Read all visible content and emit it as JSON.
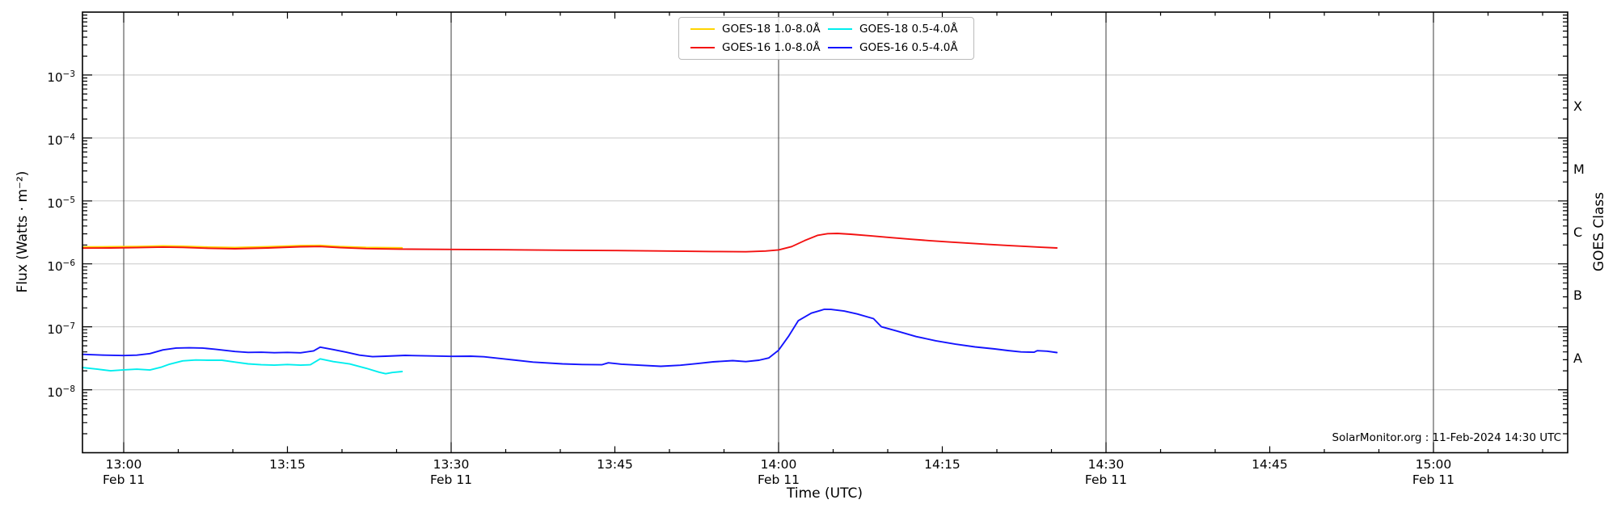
{
  "figure": {
    "background": "#ffffff",
    "annotation": "SolarMonitor.org : 11-Feb-2024 14:30 UTC"
  },
  "axes": {
    "x_label": "Time (UTC)",
    "y_label": "Flux (Watts · m⁻²)",
    "right_label": "GOES Class",
    "x_range_hours": [
      12.937,
      15.205
    ],
    "y_range_exponents": [
      -9,
      -2
    ],
    "x_ticks": [
      {
        "hours": 13.0,
        "label": "13:00",
        "date": "Feb 11",
        "major": true
      },
      {
        "hours": 13.25,
        "label": "13:15",
        "date": "",
        "major": false
      },
      {
        "hours": 13.5,
        "label": "13:30",
        "date": "Feb 11",
        "major": true
      },
      {
        "hours": 13.75,
        "label": "13:45",
        "date": "",
        "major": false
      },
      {
        "hours": 14.0,
        "label": "14:00",
        "date": "Feb 11",
        "major": true
      },
      {
        "hours": 14.25,
        "label": "14:15",
        "date": "",
        "major": false
      },
      {
        "hours": 14.5,
        "label": "14:30",
        "date": "Feb 11",
        "major": true
      },
      {
        "hours": 14.75,
        "label": "14:45",
        "date": "",
        "major": false
      },
      {
        "hours": 15.0,
        "label": "15:00",
        "date": "Feb 11",
        "major": true
      }
    ],
    "y_tick_exponents": [
      -3,
      -4,
      -5,
      -6,
      -7,
      -8
    ],
    "goes_classes": [
      {
        "label": "X",
        "mid_exponent": -3.5
      },
      {
        "label": "M",
        "mid_exponent": -4.5
      },
      {
        "label": "C",
        "mid_exponent": -5.5
      },
      {
        "label": "B",
        "mid_exponent": -6.5
      },
      {
        "label": "A",
        "mid_exponent": -7.5
      }
    ]
  },
  "colors": {
    "grid_horizontal": "#c9c9c9",
    "grid_vertical": "#3d3d3d",
    "axis": "#000000",
    "goes18_long": "#ffd400",
    "goes16_long": "#f31111",
    "goes18_short": "#00eeee",
    "goes16_short": "#1414ff"
  },
  "legend": {
    "items": [
      {
        "label": "GOES-18 1.0-8.0Å",
        "color": "#ffd400"
      },
      {
        "label": "GOES-16 1.0-8.0Å",
        "color": "#f31111"
      },
      {
        "label": "GOES-18 0.5-4.0Å",
        "color": "#00eeee"
      },
      {
        "label": "GOES-16 0.5-4.0Å",
        "color": "#1414ff"
      }
    ]
  },
  "chart_data": {
    "type": "line",
    "title": "",
    "xlabel": "Time (UTC)",
    "ylabel": "Flux (Watts · m⁻²)",
    "ylabel_right": "GOES Class",
    "x_unit": "decimal hours UTC, Feb 11 2024",
    "x_range": [
      12.937,
      15.205
    ],
    "y_scale": "log",
    "y_range": [
      1e-09,
      0.01
    ],
    "grid": {
      "horizontal_decades": true,
      "vertical_half_hours": true
    },
    "legend_position": "top-center",
    "series": [
      {
        "name": "GOES-18 1.0-8.0Å",
        "color": "#ffd400",
        "points": [
          [
            12.937,
            1.86e-06
          ],
          [
            12.98,
            1.87e-06
          ],
          [
            13.02,
            1.89e-06
          ],
          [
            13.06,
            1.93e-06
          ],
          [
            13.09,
            1.91e-06
          ],
          [
            13.13,
            1.85e-06
          ],
          [
            13.17,
            1.82e-06
          ],
          [
            13.22,
            1.87e-06
          ],
          [
            13.27,
            1.95e-06
          ],
          [
            13.3,
            1.97e-06
          ],
          [
            13.33,
            1.89e-06
          ],
          [
            13.37,
            1.83e-06
          ],
          [
            13.425,
            1.8e-06
          ]
        ]
      },
      {
        "name": "GOES-18 0.5-4.0Å",
        "color": "#00eeee",
        "points": [
          [
            12.937,
            2.25e-08
          ],
          [
            12.96,
            2.12e-08
          ],
          [
            12.98,
            2e-08
          ],
          [
            13.0,
            2.07e-08
          ],
          [
            13.02,
            2.12e-08
          ],
          [
            13.04,
            2.06e-08
          ],
          [
            13.058,
            2.3e-08
          ],
          [
            13.07,
            2.55e-08
          ],
          [
            13.09,
            2.88e-08
          ],
          [
            13.11,
            2.97e-08
          ],
          [
            13.13,
            2.95e-08
          ],
          [
            13.15,
            2.95e-08
          ],
          [
            13.17,
            2.75e-08
          ],
          [
            13.19,
            2.58e-08
          ],
          [
            13.21,
            2.5e-08
          ],
          [
            13.23,
            2.46e-08
          ],
          [
            13.25,
            2.52e-08
          ],
          [
            13.27,
            2.46e-08
          ],
          [
            13.285,
            2.5e-08
          ],
          [
            13.3,
            3.1e-08
          ],
          [
            13.32,
            2.8e-08
          ],
          [
            13.345,
            2.57e-08
          ],
          [
            13.37,
            2.2e-08
          ],
          [
            13.39,
            1.9e-08
          ],
          [
            13.4,
            1.8e-08
          ],
          [
            13.41,
            1.88e-08
          ],
          [
            13.425,
            1.95e-08
          ]
        ]
      },
      {
        "name": "GOES-16 1.0-8.0Å",
        "color": "#f31111",
        "points": [
          [
            12.937,
            1.78e-06
          ],
          [
            12.98,
            1.79e-06
          ],
          [
            13.02,
            1.81e-06
          ],
          [
            13.06,
            1.85e-06
          ],
          [
            13.09,
            1.83e-06
          ],
          [
            13.13,
            1.77e-06
          ],
          [
            13.17,
            1.74e-06
          ],
          [
            13.22,
            1.79e-06
          ],
          [
            13.27,
            1.87e-06
          ],
          [
            13.3,
            1.89e-06
          ],
          [
            13.33,
            1.81e-06
          ],
          [
            13.37,
            1.75e-06
          ],
          [
            13.42,
            1.72e-06
          ],
          [
            13.5,
            1.7e-06
          ],
          [
            13.58,
            1.68e-06
          ],
          [
            13.67,
            1.65e-06
          ],
          [
            13.75,
            1.63e-06
          ],
          [
            13.83,
            1.6e-06
          ],
          [
            13.9,
            1.57e-06
          ],
          [
            13.95,
            1.56e-06
          ],
          [
            13.98,
            1.6e-06
          ],
          [
            14.0,
            1.67e-06
          ],
          [
            14.02,
            1.88e-06
          ],
          [
            14.04,
            2.35e-06
          ],
          [
            14.06,
            2.85e-06
          ],
          [
            14.075,
            3.02e-06
          ],
          [
            14.09,
            3.05e-06
          ],
          [
            14.11,
            2.96e-06
          ],
          [
            14.14,
            2.8e-06
          ],
          [
            14.17,
            2.62e-06
          ],
          [
            14.2,
            2.47e-06
          ],
          [
            14.23,
            2.34e-06
          ],
          [
            14.26,
            2.23e-06
          ],
          [
            14.29,
            2.13e-06
          ],
          [
            14.32,
            2.04e-06
          ],
          [
            14.35,
            1.96e-06
          ],
          [
            14.38,
            1.89e-06
          ],
          [
            14.4,
            1.84e-06
          ],
          [
            14.425,
            1.79e-06
          ]
        ]
      },
      {
        "name": "GOES-16 0.5-4.0Å",
        "color": "#1414ff",
        "points": [
          [
            12.937,
            3.66e-08
          ],
          [
            12.97,
            3.55e-08
          ],
          [
            13.0,
            3.5e-08
          ],
          [
            13.02,
            3.55e-08
          ],
          [
            13.04,
            3.75e-08
          ],
          [
            13.06,
            4.3e-08
          ],
          [
            13.08,
            4.6e-08
          ],
          [
            13.1,
            4.65e-08
          ],
          [
            13.12,
            4.6e-08
          ],
          [
            13.14,
            4.4e-08
          ],
          [
            13.17,
            4.05e-08
          ],
          [
            13.19,
            3.92e-08
          ],
          [
            13.21,
            3.95e-08
          ],
          [
            13.23,
            3.88e-08
          ],
          [
            13.25,
            3.92e-08
          ],
          [
            13.27,
            3.87e-08
          ],
          [
            13.29,
            4.15e-08
          ],
          [
            13.3,
            4.75e-08
          ],
          [
            13.32,
            4.35e-08
          ],
          [
            13.34,
            3.95e-08
          ],
          [
            13.36,
            3.55e-08
          ],
          [
            13.38,
            3.36e-08
          ],
          [
            13.4,
            3.42e-08
          ],
          [
            13.43,
            3.52e-08
          ],
          [
            13.47,
            3.45e-08
          ],
          [
            13.5,
            3.4e-08
          ],
          [
            13.53,
            3.42e-08
          ],
          [
            13.55,
            3.35e-08
          ],
          [
            13.58,
            3.1e-08
          ],
          [
            13.625,
            2.75e-08
          ],
          [
            13.67,
            2.58e-08
          ],
          [
            13.7,
            2.52e-08
          ],
          [
            13.73,
            2.5e-08
          ],
          [
            13.74,
            2.68e-08
          ],
          [
            13.76,
            2.55e-08
          ],
          [
            13.78,
            2.48e-08
          ],
          [
            13.82,
            2.36e-08
          ],
          [
            13.85,
            2.45e-08
          ],
          [
            13.875,
            2.6e-08
          ],
          [
            13.9,
            2.78e-08
          ],
          [
            13.93,
            2.9e-08
          ],
          [
            13.95,
            2.8e-08
          ],
          [
            13.97,
            2.95e-08
          ],
          [
            13.985,
            3.2e-08
          ],
          [
            14.0,
            4.25e-08
          ],
          [
            14.015,
            7e-08
          ],
          [
            14.03,
            1.25e-07
          ],
          [
            14.05,
            1.65e-07
          ],
          [
            14.07,
            1.9e-07
          ],
          [
            14.08,
            1.89e-07
          ],
          [
            14.1,
            1.78e-07
          ],
          [
            14.12,
            1.6e-07
          ],
          [
            14.145,
            1.35e-07
          ],
          [
            14.157,
            1e-07
          ],
          [
            14.18,
            8.6e-08
          ],
          [
            14.21,
            7e-08
          ],
          [
            14.24,
            6e-08
          ],
          [
            14.27,
            5.3e-08
          ],
          [
            14.3,
            4.8e-08
          ],
          [
            14.33,
            4.45e-08
          ],
          [
            14.35,
            4.2e-08
          ],
          [
            14.37,
            4e-08
          ],
          [
            14.39,
            3.95e-08
          ],
          [
            14.395,
            4.18e-08
          ],
          [
            14.41,
            4.1e-08
          ],
          [
            14.425,
            3.9e-08
          ]
        ]
      }
    ]
  }
}
